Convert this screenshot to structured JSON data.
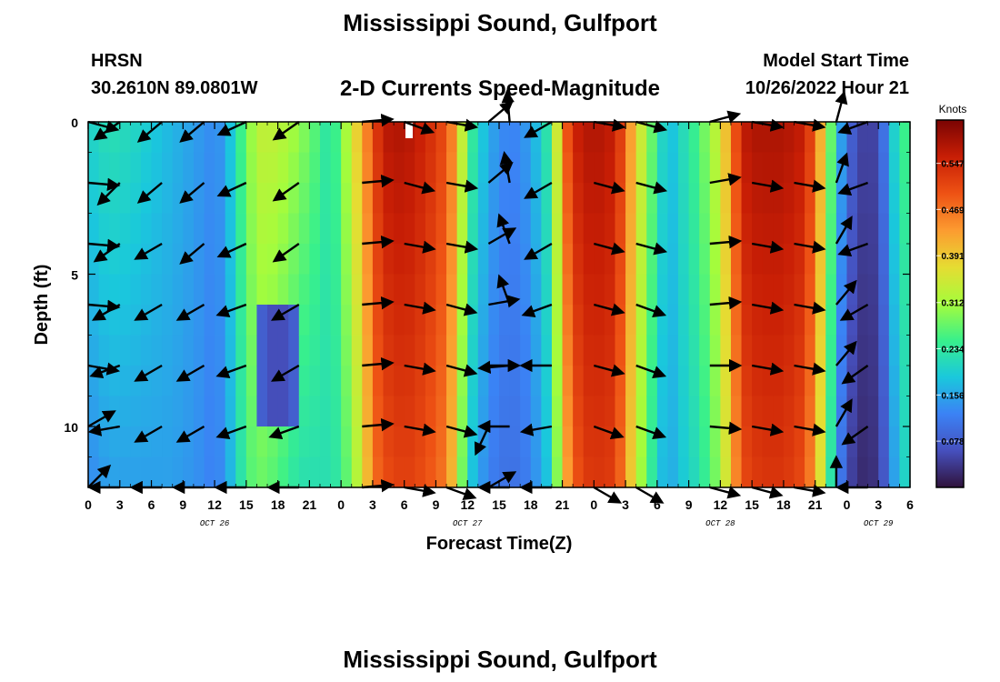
{
  "header": {
    "title": "Mississippi Sound, Gulfport",
    "station": "HRSN",
    "coords": "30.2610N  89.0801W",
    "subtitle": "2-D Currents Speed-Magnitude",
    "model_start_label": "Model Start Time",
    "model_start_value": "10/26/2022 Hour 21"
  },
  "footer": {
    "title": "Mississippi Sound, Gulfport"
  },
  "chart_data": {
    "type": "heatmap",
    "title": "2-D Currents Speed-Magnitude",
    "xlabel": "Forecast Time(Z)",
    "ylabel": "Depth (ft)",
    "x_unit": "hours from 00Z Oct 26",
    "xlim": [
      0,
      78
    ],
    "ylim": [
      0,
      12
    ],
    "y_inverted": true,
    "x_tick_labels": [
      "0",
      "3",
      "6",
      "9",
      "12",
      "15",
      "18",
      "21",
      "0",
      "3",
      "6",
      "9",
      "12",
      "15",
      "18",
      "21",
      "0",
      "3",
      "6",
      "9",
      "12",
      "15",
      "18",
      "21",
      "0",
      "3",
      "6"
    ],
    "y_ticks": [
      0,
      5,
      10
    ],
    "day_labels": [
      "OCT 26",
      "OCT 27",
      "OCT 28",
      "OCT 29"
    ],
    "colorbar": {
      "unit": "Knots",
      "range": [
        0.0,
        0.62
      ],
      "ticks": [
        0.078,
        0.156,
        0.234,
        0.312,
        0.391,
        0.469,
        0.547
      ],
      "tick_labels": [
        "0.078",
        "0.156",
        "0.234",
        "0.312",
        "0.391",
        "0.469",
        "0.547"
      ]
    },
    "speed_profile": {
      "hours": [
        0,
        2,
        4,
        6,
        8,
        10,
        12,
        13,
        14,
        15,
        16,
        17,
        18,
        19,
        20,
        21,
        22,
        23,
        24,
        26,
        27,
        28,
        30,
        32,
        34,
        35,
        36,
        38,
        40,
        42,
        44,
        45,
        46,
        47,
        48,
        50,
        51,
        52,
        54,
        55,
        56,
        58,
        60,
        61,
        62,
        63,
        64,
        66,
        68,
        69,
        70,
        71,
        72,
        73,
        74,
        75,
        76,
        77,
        78
      ],
      "speed_surface": [
        0.2,
        0.22,
        0.21,
        0.19,
        0.17,
        0.15,
        0.13,
        0.15,
        0.22,
        0.28,
        0.33,
        0.34,
        0.33,
        0.32,
        0.3,
        0.28,
        0.25,
        0.22,
        0.28,
        0.42,
        0.5,
        0.57,
        0.58,
        0.55,
        0.5,
        0.42,
        0.26,
        0.16,
        0.12,
        0.15,
        0.25,
        0.45,
        0.55,
        0.57,
        0.58,
        0.56,
        0.48,
        0.38,
        0.24,
        0.17,
        0.2,
        0.26,
        0.35,
        0.45,
        0.56,
        0.58,
        0.58,
        0.58,
        0.56,
        0.48,
        0.35,
        0.2,
        0.1,
        0.06,
        0.04,
        0.06,
        0.15,
        0.25,
        0.25
      ],
      "speed_bottom": [
        0.13,
        0.15,
        0.15,
        0.15,
        0.15,
        0.14,
        0.12,
        0.14,
        0.2,
        0.25,
        0.28,
        0.27,
        0.26,
        0.24,
        0.22,
        0.22,
        0.22,
        0.22,
        0.24,
        0.35,
        0.46,
        0.5,
        0.52,
        0.5,
        0.46,
        0.36,
        0.2,
        0.12,
        0.1,
        0.12,
        0.2,
        0.38,
        0.48,
        0.52,
        0.53,
        0.52,
        0.44,
        0.34,
        0.2,
        0.15,
        0.18,
        0.22,
        0.3,
        0.4,
        0.5,
        0.52,
        0.53,
        0.53,
        0.5,
        0.42,
        0.3,
        0.15,
        0.06,
        0.03,
        0.02,
        0.04,
        0.1,
        0.2,
        0.2
      ],
      "low_patch": {
        "hours": [
          16,
          20
        ],
        "depths": [
          6,
          10
        ],
        "speed": 0.05
      }
    },
    "vector_depths": [
      0,
      2,
      4,
      6,
      8,
      10,
      12
    ],
    "vectors": [
      {
        "hour": 0,
        "angles": [
          -15,
          -5,
          -5,
          -5,
          -10,
          30,
          45
        ]
      },
      {
        "hour": 3,
        "angles": [
          -145,
          -135,
          -145,
          -150,
          -160,
          -170,
          180
        ]
      },
      {
        "hour": 7,
        "angles": [
          -140,
          -140,
          -150,
          -150,
          -150,
          -150,
          180
        ]
      },
      {
        "hour": 11,
        "angles": [
          -140,
          -140,
          -140,
          -150,
          -150,
          -150,
          180
        ]
      },
      {
        "hour": 15,
        "angles": [
          -155,
          -155,
          -155,
          -160,
          -160,
          -160,
          180
        ]
      },
      {
        "hour": 20,
        "angles": [
          -145,
          -145,
          -145,
          -150,
          -150,
          -160,
          180
        ]
      },
      {
        "hour": 26,
        "angles": [
          5,
          5,
          5,
          5,
          5,
          5,
          5
        ]
      },
      {
        "hour": 30,
        "angles": [
          -20,
          -15,
          -10,
          -10,
          -10,
          -10,
          -10
        ]
      },
      {
        "hour": 34,
        "angles": [
          -10,
          -10,
          -10,
          -15,
          -15,
          -15,
          -20
        ]
      },
      {
        "hour": 38,
        "angles": [
          40,
          40,
          30,
          10,
          0,
          -115,
          30
        ]
      },
      {
        "hour": 40,
        "angles": [
          95,
          100,
          110,
          110,
          -175,
          -180,
          180
        ]
      },
      {
        "hour": 44,
        "angles": [
          -150,
          -150,
          -150,
          -160,
          -180,
          -170,
          180
        ]
      },
      {
        "hour": 48,
        "angles": [
          -10,
          -15,
          -15,
          -15,
          -15,
          -20,
          -30
        ]
      },
      {
        "hour": 52,
        "angles": [
          -15,
          -15,
          -15,
          -20,
          -20,
          -20,
          -30
        ]
      },
      {
        "hour": 59,
        "angles": [
          15,
          10,
          5,
          5,
          0,
          -5,
          -15
        ]
      },
      {
        "hour": 63,
        "angles": [
          -10,
          -10,
          -10,
          -10,
          -10,
          -10,
          -15
        ]
      },
      {
        "hour": 67,
        "angles": [
          -10,
          -10,
          -10,
          -10,
          -10,
          -10,
          -10
        ]
      },
      {
        "hour": 71,
        "angles": [
          75,
          70,
          60,
          50,
          50,
          60,
          90
        ]
      },
      {
        "hour": 74,
        "angles": [
          -160,
          -160,
          -160,
          -150,
          -145,
          -145,
          180
        ]
      }
    ]
  }
}
